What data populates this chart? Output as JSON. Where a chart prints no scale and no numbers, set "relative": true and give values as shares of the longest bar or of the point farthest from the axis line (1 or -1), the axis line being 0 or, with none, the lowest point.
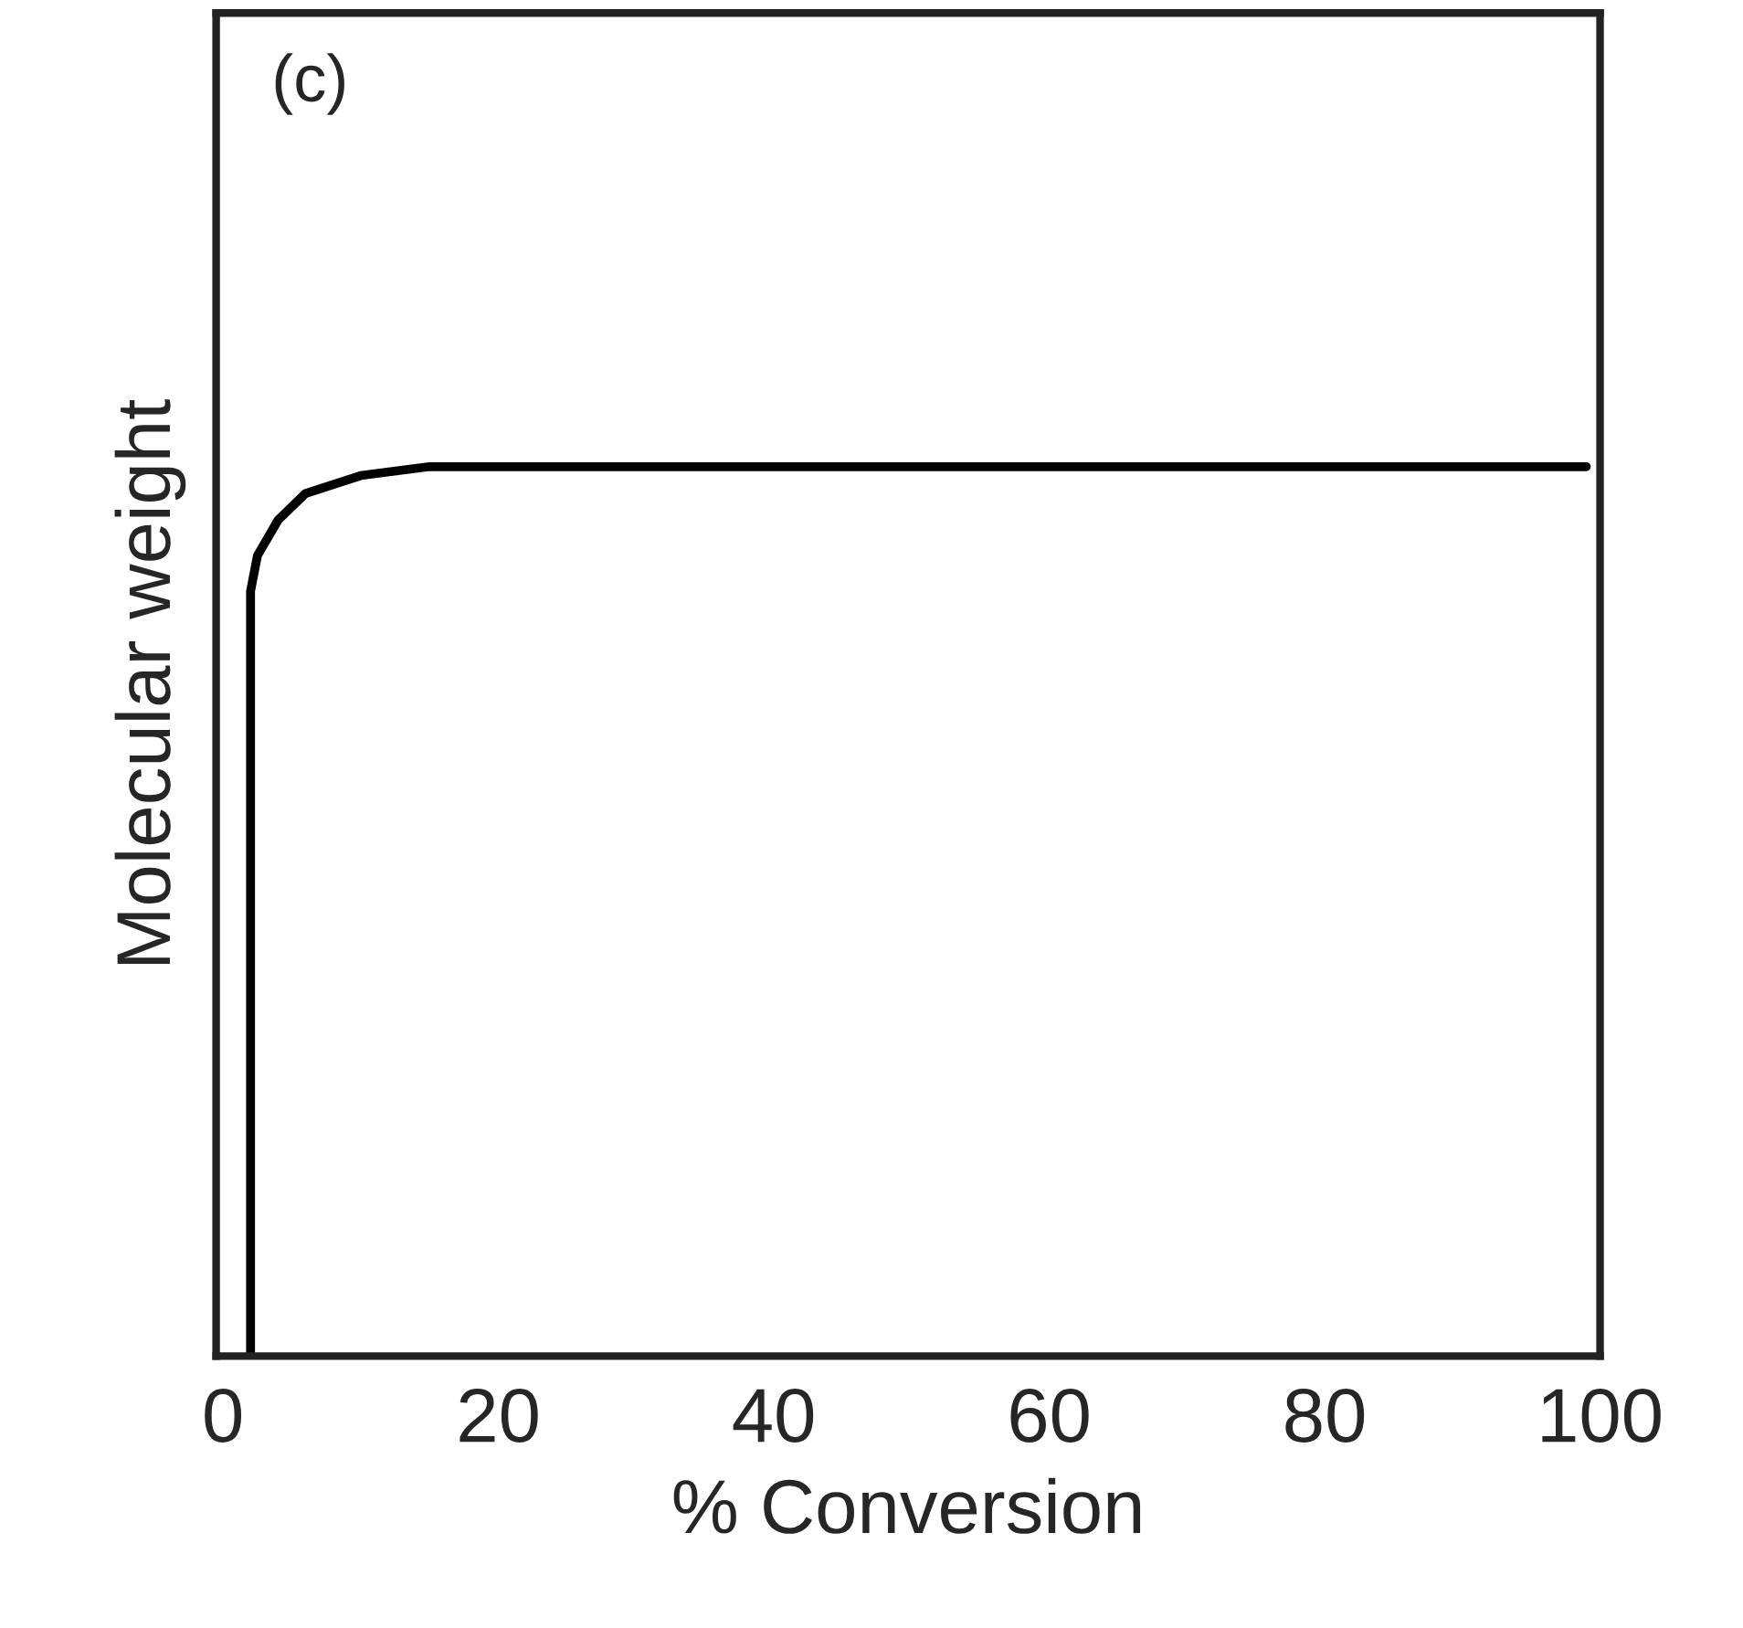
{
  "chart_data": {
    "type": "line",
    "relative": true,
    "xlabel": "% Conversion",
    "ylabel": "Molecular weight",
    "annotations": [
      "(c)"
    ],
    "xlim": [
      -0.5,
      100
    ],
    "xticks": [
      0,
      20,
      40,
      60,
      80,
      100
    ],
    "tick_labels": "x",
    "grid": false,
    "legend": false,
    "marker": "none",
    "line_style": "solid",
    "series": [
      {
        "color": "#000000",
        "x": [
          2,
          2,
          2.5,
          4,
          6,
          10,
          15,
          19,
          99
        ],
        "values": [
          0,
          0.86,
          0.9,
          0.94,
          0.97,
          0.99,
          1.0,
          1.0,
          1.0
        ]
      }
    ]
  }
}
